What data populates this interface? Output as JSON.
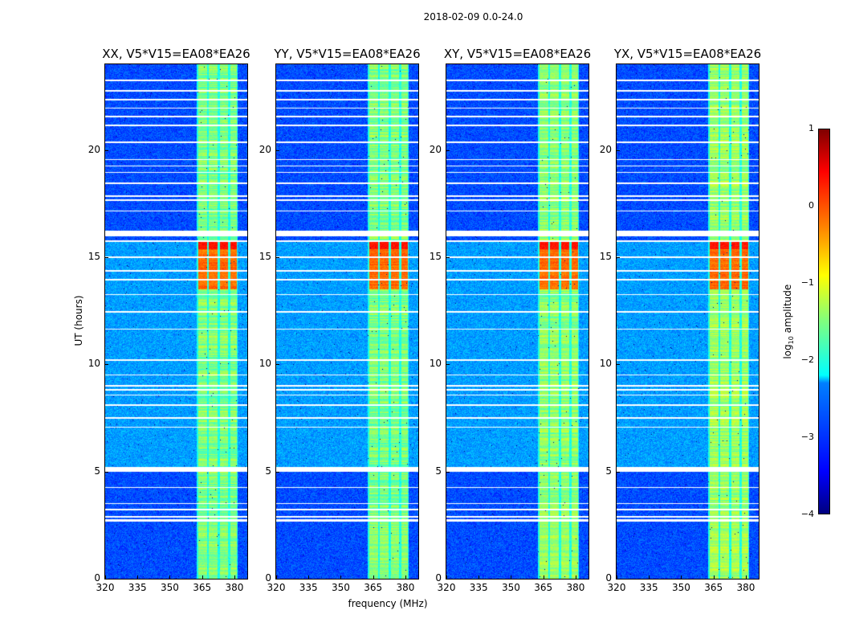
{
  "chart_data": {
    "type": "heatmap",
    "title": "2018-02-09 0.0-24.0",
    "xlabel": "frequency (MHz)",
    "ylabel": "UT (hours)",
    "xlim": [
      320,
      386
    ],
    "ylim": [
      0,
      24
    ],
    "xticks": [
      "320",
      "335",
      "350",
      "365",
      "380"
    ],
    "yticks": [
      "0",
      "5",
      "10",
      "15",
      "20"
    ],
    "panels": [
      {
        "title": "XX, V5*V15=EA08*EA26",
        "hot_scale": 1.0
      },
      {
        "title": "YY, V5*V15=EA08*EA26",
        "hot_scale": 1.0
      },
      {
        "title": "XY, V5*V15=EA08*EA26",
        "hot_scale": 0.95
      },
      {
        "title": "YX, V5*V15=EA08*EA26",
        "hot_scale": 0.9
      }
    ],
    "colorbar": {
      "label_prefix": "log",
      "label_sub": "10",
      "label_suffix": " amplitude",
      "range": [
        -4,
        1
      ],
      "ticks": [
        "1",
        "0",
        "−1",
        "−2",
        "−3",
        "−4"
      ],
      "colormap": "jet"
    },
    "rfi_bands_mhz": [
      [
        363,
        367
      ],
      [
        368,
        372
      ],
      [
        373,
        377
      ],
      [
        378,
        381
      ]
    ],
    "flagged_hours": [
      [
        2.7,
        2.78
      ],
      [
        2.88,
        2.95
      ],
      [
        3.2,
        3.27
      ],
      [
        3.5,
        3.56
      ],
      [
        4.25,
        4.3
      ],
      [
        5.02,
        5.22
      ],
      [
        7.05,
        7.1
      ],
      [
        7.5,
        7.56
      ],
      [
        8.1,
        8.16
      ],
      [
        8.55,
        8.6
      ],
      [
        8.8,
        8.86
      ],
      [
        9.0,
        9.06
      ],
      [
        9.5,
        9.56
      ],
      [
        10.2,
        10.26
      ],
      [
        11.65,
        11.7
      ],
      [
        12.45,
        12.5
      ],
      [
        13.25,
        13.3
      ],
      [
        13.95,
        14.0
      ],
      [
        14.35,
        14.4
      ],
      [
        15.0,
        15.06
      ],
      [
        15.75,
        15.8
      ],
      [
        16.0,
        16.25
      ],
      [
        17.15,
        17.2
      ],
      [
        17.65,
        17.7
      ],
      [
        17.85,
        17.9
      ],
      [
        18.45,
        18.5
      ],
      [
        18.95,
        19.0
      ],
      [
        19.25,
        19.3
      ],
      [
        19.55,
        19.6
      ],
      [
        20.35,
        20.4
      ],
      [
        21.15,
        21.2
      ],
      [
        21.55,
        21.6
      ],
      [
        21.95,
        22.0
      ],
      [
        22.35,
        22.4
      ],
      [
        22.75,
        22.8
      ],
      [
        23.25,
        23.3
      ]
    ],
    "levels_log10": {
      "background_quiet": -3.0,
      "background_daytime": -2.6,
      "rfi_typical": -1.5,
      "rfi_peak": 0.3
    }
  }
}
